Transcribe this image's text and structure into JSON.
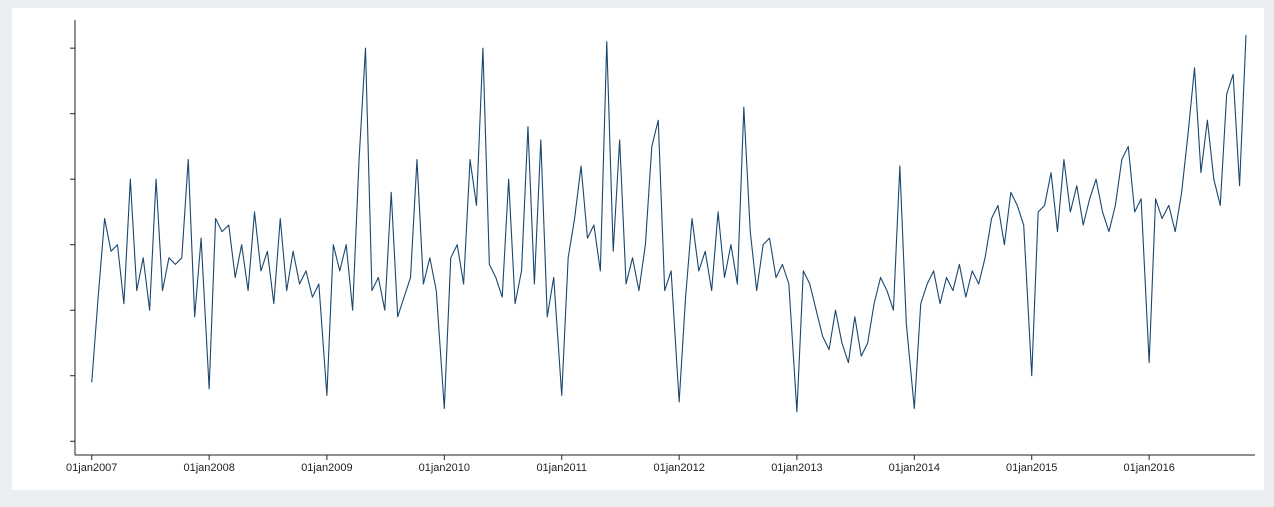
{
  "chart_data": {
    "type": "line",
    "x": [
      "2007-01-01",
      "2007-01-21",
      "2007-02-10",
      "2007-03-02",
      "2007-03-22",
      "2007-04-11",
      "2007-05-01",
      "2007-05-21",
      "2007-06-10",
      "2007-06-30",
      "2007-07-20",
      "2007-08-09",
      "2007-08-29",
      "2007-09-18",
      "2007-10-08",
      "2007-10-28",
      "2007-11-17",
      "2007-12-07",
      "2008-01-01",
      "2008-01-21",
      "2008-02-10",
      "2008-03-02",
      "2008-03-22",
      "2008-04-11",
      "2008-05-01",
      "2008-05-21",
      "2008-06-10",
      "2008-06-30",
      "2008-07-20",
      "2008-08-09",
      "2008-08-29",
      "2008-09-18",
      "2008-10-08",
      "2008-10-28",
      "2008-11-17",
      "2008-12-07",
      "2009-01-01",
      "2009-01-21",
      "2009-02-10",
      "2009-03-02",
      "2009-03-22",
      "2009-04-11",
      "2009-05-01",
      "2009-05-21",
      "2009-06-10",
      "2009-06-30",
      "2009-07-20",
      "2009-08-09",
      "2009-08-29",
      "2009-09-18",
      "2009-10-08",
      "2009-10-28",
      "2009-11-17",
      "2009-12-07",
      "2010-01-01",
      "2010-01-21",
      "2010-02-10",
      "2010-03-02",
      "2010-03-22",
      "2010-04-11",
      "2010-05-01",
      "2010-05-21",
      "2010-06-10",
      "2010-06-30",
      "2010-07-20",
      "2010-08-09",
      "2010-08-29",
      "2010-09-18",
      "2010-10-08",
      "2010-10-28",
      "2010-11-17",
      "2010-12-07",
      "2011-01-01",
      "2011-01-21",
      "2011-02-10",
      "2011-03-02",
      "2011-03-22",
      "2011-04-11",
      "2011-05-01",
      "2011-05-21",
      "2011-06-10",
      "2011-06-30",
      "2011-07-20",
      "2011-08-09",
      "2011-08-29",
      "2011-09-18",
      "2011-10-08",
      "2011-10-28",
      "2011-11-17",
      "2011-12-07",
      "2012-01-01",
      "2012-01-21",
      "2012-02-10",
      "2012-03-02",
      "2012-03-22",
      "2012-04-11",
      "2012-05-01",
      "2012-05-21",
      "2012-06-10",
      "2012-06-30",
      "2012-07-20",
      "2012-08-09",
      "2012-08-29",
      "2012-09-18",
      "2012-10-08",
      "2012-10-28",
      "2012-11-17",
      "2012-12-07",
      "2013-01-01",
      "2013-01-21",
      "2013-02-10",
      "2013-03-02",
      "2013-03-22",
      "2013-04-11",
      "2013-05-01",
      "2013-05-21",
      "2013-06-10",
      "2013-06-30",
      "2013-07-20",
      "2013-08-09",
      "2013-08-29",
      "2013-09-18",
      "2013-10-08",
      "2013-10-28",
      "2013-11-17",
      "2013-12-07",
      "2014-01-01",
      "2014-01-21",
      "2014-02-10",
      "2014-03-02",
      "2014-03-22",
      "2014-04-11",
      "2014-05-01",
      "2014-05-21",
      "2014-06-10",
      "2014-06-30",
      "2014-07-20",
      "2014-08-09",
      "2014-08-29",
      "2014-09-18",
      "2014-10-08",
      "2014-10-28",
      "2014-11-17",
      "2014-12-07",
      "2015-01-01",
      "2015-01-21",
      "2015-02-10",
      "2015-03-02",
      "2015-03-22",
      "2015-04-11",
      "2015-05-01",
      "2015-05-21",
      "2015-06-10",
      "2015-06-30",
      "2015-07-20",
      "2015-08-09",
      "2015-08-29",
      "2015-09-18",
      "2015-10-08",
      "2015-10-28",
      "2015-11-17",
      "2015-12-07",
      "2016-01-01",
      "2016-01-21",
      "2016-02-10",
      "2016-03-02",
      "2016-03-22",
      "2016-04-11",
      "2016-05-01",
      "2016-05-21",
      "2016-06-10",
      "2016-06-30",
      "2016-07-20",
      "2016-08-09",
      "2016-08-29",
      "2016-09-18",
      "2016-10-08",
      "2016-10-28"
    ],
    "series": [
      {
        "color": "#1a476f",
        "values": [
          0.9,
          2.2,
          3.4,
          2.9,
          3.0,
          2.1,
          4.0,
          2.3,
          2.8,
          2.0,
          4.0,
          2.3,
          2.8,
          2.7,
          2.8,
          4.3,
          1.9,
          3.1,
          0.8,
          3.4,
          3.2,
          3.3,
          2.5,
          3.0,
          2.3,
          3.5,
          2.6,
          2.9,
          2.1,
          3.4,
          2.3,
          2.9,
          2.4,
          2.6,
          2.2,
          2.4,
          0.7,
          3.0,
          2.6,
          3.0,
          2.0,
          4.3,
          6.0,
          2.3,
          2.5,
          2.0,
          3.8,
          1.9,
          2.2,
          2.5,
          4.3,
          2.4,
          2.8,
          2.3,
          0.5,
          2.8,
          3.0,
          2.4,
          4.3,
          3.6,
          6.0,
          2.7,
          2.5,
          2.2,
          4.0,
          2.1,
          2.6,
          4.8,
          2.4,
          4.6,
          1.9,
          2.5,
          0.7,
          2.8,
          3.4,
          4.2,
          3.1,
          3.3,
          2.6,
          6.1,
          2.9,
          4.6,
          2.4,
          2.8,
          2.3,
          3.0,
          4.5,
          4.9,
          2.3,
          2.6,
          0.6,
          2.2,
          3.4,
          2.6,
          2.9,
          2.3,
          3.5,
          2.5,
          3.0,
          2.4,
          5.1,
          3.2,
          2.3,
          3.0,
          3.1,
          2.5,
          2.7,
          2.4,
          0.45,
          2.6,
          2.4,
          2.0,
          1.6,
          1.4,
          2.0,
          1.5,
          1.2,
          1.9,
          1.3,
          1.5,
          2.1,
          2.5,
          2.3,
          2.0,
          4.2,
          1.8,
          0.5,
          2.1,
          2.4,
          2.6,
          2.1,
          2.5,
          2.3,
          2.7,
          2.2,
          2.6,
          2.4,
          2.8,
          3.4,
          3.6,
          3.0,
          3.8,
          3.6,
          3.3,
          1.0,
          3.5,
          3.6,
          4.1,
          3.2,
          4.3,
          3.5,
          3.9,
          3.3,
          3.7,
          4.0,
          3.5,
          3.2,
          3.6,
          4.3,
          4.5,
          3.5,
          3.7,
          1.2,
          3.7,
          3.4,
          3.6,
          3.2,
          3.8,
          4.7,
          5.7,
          4.1,
          4.9,
          4.0,
          3.6,
          5.3,
          5.6,
          3.9,
          6.2
        ]
      }
    ],
    "xlim": [
      "2006-11-10",
      "2016-11-25"
    ],
    "xticks": [
      {
        "value": "2007-01-01",
        "label": "01jan2007"
      },
      {
        "value": "2008-01-01",
        "label": "01jan2008"
      },
      {
        "value": "2009-01-01",
        "label": "01jan2009"
      },
      {
        "value": "2010-01-01",
        "label": "01jan2010"
      },
      {
        "value": "2011-01-01",
        "label": "01jan2011"
      },
      {
        "value": "2012-01-01",
        "label": "01jan2012"
      },
      {
        "value": "2013-01-01",
        "label": "01jan2013"
      },
      {
        "value": "2014-01-01",
        "label": "01jan2014"
      },
      {
        "value": "2015-01-01",
        "label": "01jan2015"
      },
      {
        "value": "2016-01-01",
        "label": "01jan2016"
      }
    ],
    "ylim": [
      -0.21,
      6.43
    ],
    "yticks": [
      0,
      1,
      2,
      3,
      4,
      5,
      6
    ],
    "show_ytick_labels": false
  }
}
